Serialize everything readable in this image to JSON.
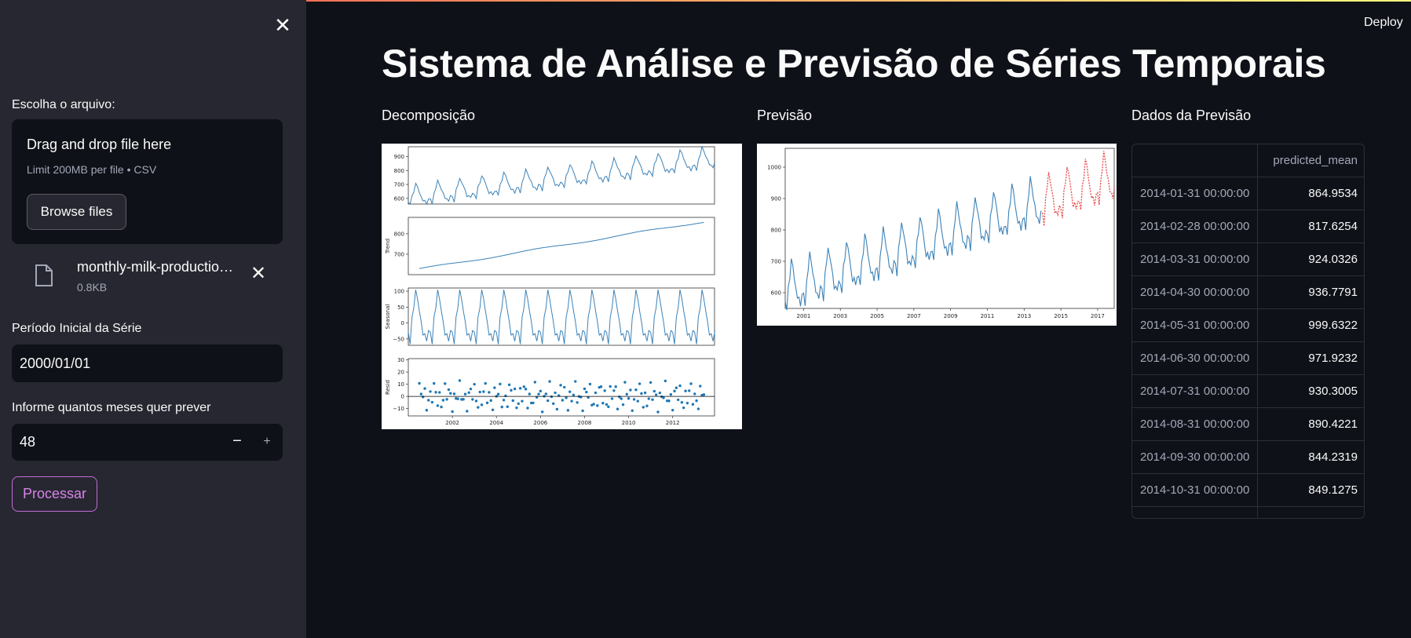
{
  "sidebar": {
    "file_label": "Escolha o arquivo:",
    "dropzone": {
      "title": "Drag and drop file here",
      "subtitle": "Limit 200MB per file • CSV",
      "browse_label": "Browse files"
    },
    "uploaded_file": {
      "name": "monthly-milk-productio…",
      "size": "0.8KB"
    },
    "start_label": "Período Inicial da Série",
    "start_value": "2000/01/01",
    "months_label": "Informe quantos meses quer prever",
    "months_value": "48",
    "minus_label": "−",
    "plus_label": "+",
    "close_label": "✕",
    "remove_label": "✕",
    "process_label": "Processar"
  },
  "header": {
    "deploy_label": "Deploy"
  },
  "main": {
    "title": "Sistema de Análise e Previsão de Séries Temporais",
    "decomp_title": "Decomposição",
    "forecast_title": "Previsão",
    "table_title": "Dados da Previsão"
  },
  "colors": {
    "series": "#3b82b8",
    "forecast": "#e8484a",
    "residual": "#1f77b4",
    "accent": "#d883e8"
  },
  "icons": {
    "close": "close-icon",
    "file": "file-icon",
    "remove": "remove-icon"
  },
  "table": {
    "column": "predicted_mean",
    "rows": [
      {
        "date": "2014-01-31 00:00:00",
        "value": "864.9534"
      },
      {
        "date": "2014-02-28 00:00:00",
        "value": "817.6254"
      },
      {
        "date": "2014-03-31 00:00:00",
        "value": "924.0326"
      },
      {
        "date": "2014-04-30 00:00:00",
        "value": "936.7791"
      },
      {
        "date": "2014-05-31 00:00:00",
        "value": "999.6322"
      },
      {
        "date": "2014-06-30 00:00:00",
        "value": "971.9232"
      },
      {
        "date": "2014-07-31 00:00:00",
        "value": "930.3005"
      },
      {
        "date": "2014-08-31 00:00:00",
        "value": "890.4221"
      },
      {
        "date": "2014-09-30 00:00:00",
        "value": "844.2319"
      },
      {
        "date": "2014-10-31 00:00:00",
        "value": "849.1275"
      }
    ]
  },
  "chart_data": [
    {
      "type": "line",
      "panels": [
        {
          "ylabel": "",
          "yticks": [
            "600",
            "700",
            "800",
            "900"
          ],
          "ylim": [
            560,
            970
          ]
        },
        {
          "ylabel": "Trend",
          "yticks": [
            "700",
            "800"
          ],
          "ylim": [
            600,
            880
          ]
        },
        {
          "ylabel": "Seasonal",
          "yticks": [
            "−50",
            "0",
            "50",
            "100"
          ],
          "ylim": [
            -70,
            110
          ]
        },
        {
          "ylabel": "Resid",
          "yticks": [
            "−10",
            "0",
            "10",
            "20",
            "30"
          ],
          "ylim": [
            -16,
            31
          ]
        }
      ],
      "xticks": [
        "2002",
        "2004",
        "2006",
        "2008",
        "2010",
        "2012"
      ],
      "xlim": [
        2000,
        2013.9
      ]
    },
    {
      "type": "line",
      "series": [
        {
          "values_range": "2000-01 to 2013-12"
        },
        {
          "values_range": "2014-01 to 2017-12"
        }
      ],
      "xticks": [
        "2001",
        "2003",
        "2005",
        "2007",
        "2009",
        "2011",
        "2013",
        "2015",
        "2017"
      ],
      "yticks": [
        "600",
        "700",
        "800",
        "900",
        "1000"
      ],
      "xlim": [
        2000,
        2017.9
      ],
      "ylim": [
        550,
        1060
      ]
    }
  ]
}
